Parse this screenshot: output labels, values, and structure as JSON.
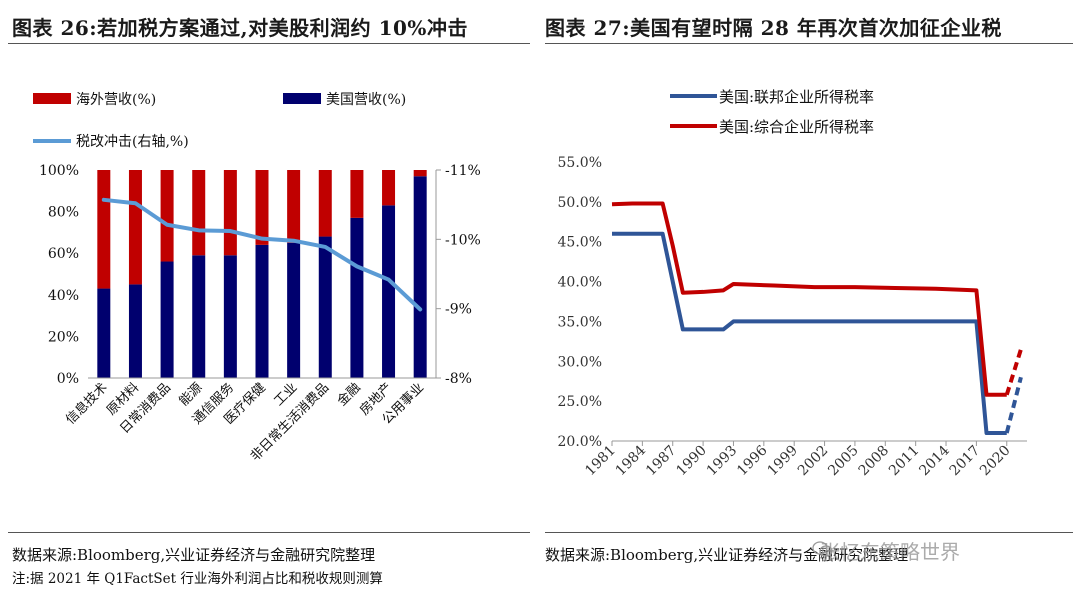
{
  "left": {
    "title": "图表 26:若加税方案通过,对美股利润约 10%冲击",
    "source": "数据来源:Bloomberg,兴业证券经济与金融研究院整理",
    "note": "注:据 2021 年 Q1FactSet 行业海外利润占比和税收规则测算"
  },
  "right": {
    "title": "图表 27:美国有望时隔 28 年再次首次加征企业税",
    "source": "数据来源:Bloomberg,兴业证券经济与金融研究院整理"
  },
  "watermark": "张忆东策略世界",
  "colors": {
    "red": "#C00000",
    "navy": "#00006E",
    "lightblue": "#5B9BD5",
    "blue": "#2F5597",
    "red2": "#C00000"
  },
  "chart_data": [
    {
      "type": "bar",
      "stacked": true,
      "categories": [
        "信息技术",
        "原材料",
        "日常消费品",
        "能源",
        "通信服务",
        "医疗保健",
        "工业",
        "非日常生活消费品",
        "金融",
        "房地产",
        "公用事业"
      ],
      "series": [
        {
          "name": "美国营收(%)",
          "values": [
            43,
            45,
            56,
            59,
            59,
            64,
            65,
            68,
            77,
            83,
            97
          ],
          "color": "#00006E"
        },
        {
          "name": "海外营收(%)",
          "values": [
            57,
            55,
            44,
            41,
            41,
            36,
            35,
            32,
            23,
            17,
            3
          ],
          "color": "#C00000"
        }
      ],
      "line_series": {
        "name": "税改冲击(右轴,%)",
        "values": [
          -10.57,
          -10.52,
          -10.21,
          -10.13,
          -10.12,
          -10.01,
          -9.98,
          -9.89,
          -9.61,
          -9.42,
          -8.99
        ],
        "color": "#5B9BD5"
      },
      "y_left": {
        "ticks": [
          "0%",
          "20%",
          "40%",
          "60%",
          "80%",
          "100%"
        ],
        "range": [
          0,
          100
        ]
      },
      "y_right": {
        "ticks": [
          "-8%",
          "-9%",
          "-10%",
          "-11%"
        ],
        "range": [
          -8,
          -11
        ],
        "reversed": true
      },
      "legend": [
        "海外营收(%)",
        "美国营收(%)",
        "税改冲击(右轴,%)"
      ],
      "legend_position": "top"
    },
    {
      "type": "line",
      "x_ticks": [
        "1981",
        "1984",
        "1987",
        "1990",
        "1993",
        "1996",
        "1999",
        "2002",
        "2005",
        "2008",
        "2011",
        "2014",
        "2017",
        "2020"
      ],
      "y_ticks": [
        "20.0%",
        "25.0%",
        "30.0%",
        "35.0%",
        "40.0%",
        "45.0%",
        "50.0%",
        "55.0%"
      ],
      "ylim": [
        20,
        55
      ],
      "xlim": [
        1981,
        2022
      ],
      "series": [
        {
          "name": "美国:联邦企业所得税率",
          "color": "#2F5597",
          "points": [
            [
              1981,
              46
            ],
            [
              1986,
              46
            ],
            [
              1987,
              40
            ],
            [
              1988,
              34
            ],
            [
              1992,
              34
            ],
            [
              1993,
              35
            ],
            [
              2017,
              35
            ],
            [
              2018,
              21
            ],
            [
              2020,
              21
            ]
          ],
          "projection": [
            [
              2020,
              21
            ],
            [
              2021.4,
              28
            ]
          ]
        },
        {
          "name": "美国:综合企业所得税率",
          "color": "#C00000",
          "points": [
            [
              1981,
              49.7
            ],
            [
              1983,
              49.8
            ],
            [
              1986,
              49.8
            ],
            [
              1987,
              44.5
            ],
            [
              1988,
              38.6
            ],
            [
              1990,
              38.7
            ],
            [
              1992,
              38.9
            ],
            [
              1993,
              39.7
            ],
            [
              1997,
              39.5
            ],
            [
              2001,
              39.3
            ],
            [
              2005,
              39.3
            ],
            [
              2009,
              39.2
            ],
            [
              2013,
              39.1
            ],
            [
              2017,
              38.9
            ],
            [
              2018,
              25.8
            ],
            [
              2020,
              25.8
            ]
          ],
          "projection": [
            [
              2020,
              25.8
            ],
            [
              2021.4,
              31.5
            ]
          ]
        }
      ],
      "legend": [
        "美国:联邦企业所得税率",
        "美国:综合企业所得税率"
      ],
      "legend_position": "top-left"
    }
  ]
}
